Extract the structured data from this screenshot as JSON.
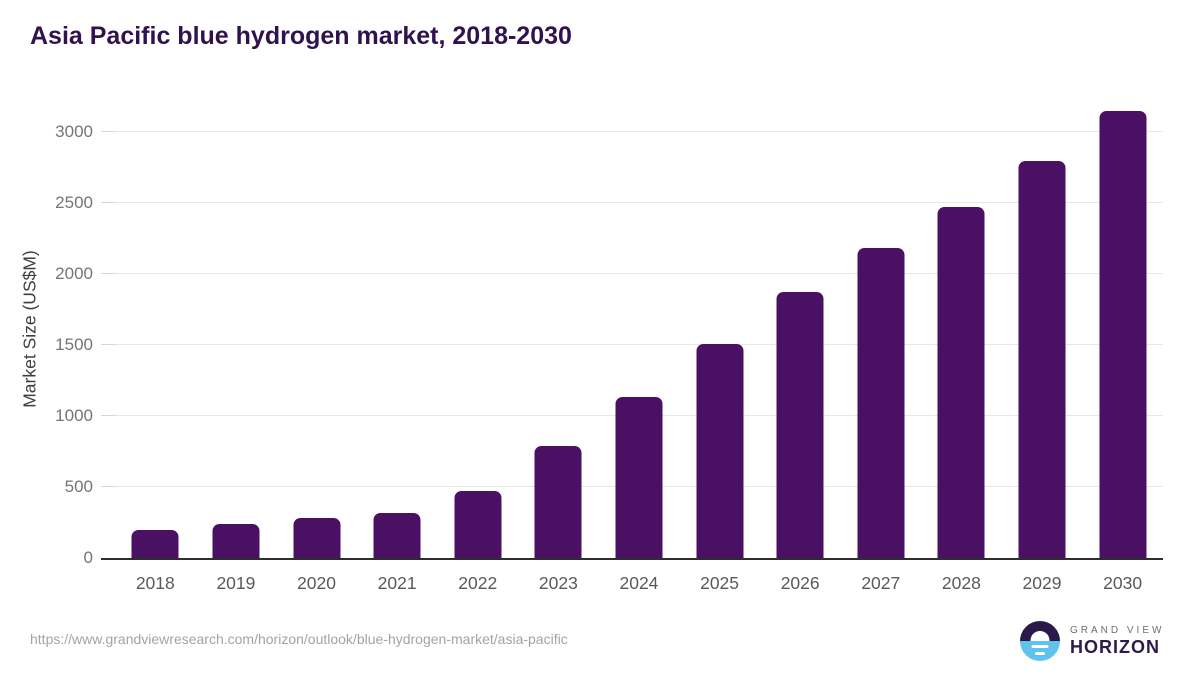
{
  "title": "Asia Pacific blue hydrogen market, 2018-2030",
  "source_url": "https://www.grandviewresearch.com/horizon/outlook/blue-hydrogen-market/asia-pacific",
  "logo": {
    "top": "GRAND VIEW",
    "bottom": "HORIZON",
    "icon": "horizon-sun-icon"
  },
  "colors": {
    "bar": "#4a1063",
    "title": "#30124f",
    "gridline": "#e7e7e7",
    "axis_line": "#2e2e2e",
    "tick_mark": "#d5d5d5",
    "y_tick_label": "#757575",
    "x_tick_label": "#595959",
    "axis_title": "#3f3f3f",
    "source_text": "#a3a3a3",
    "logo_dark": "#2b1a47",
    "logo_blue": "#5fc3ee",
    "logo_gray": "#6f6f6f"
  },
  "chart_data": {
    "type": "bar",
    "title": "Asia Pacific blue hydrogen market, 2018-2030",
    "categories": [
      "2018",
      "2019",
      "2020",
      "2021",
      "2022",
      "2023",
      "2024",
      "2025",
      "2026",
      "2027",
      "2028",
      "2029",
      "2030"
    ],
    "values": [
      200,
      242,
      280,
      318,
      472,
      790,
      1135,
      1505,
      1870,
      2185,
      2470,
      2795,
      3145
    ],
    "xlabel": "",
    "ylabel": "Market Size (US$M)",
    "ylim": [
      0,
      3000
    ],
    "yticks": [
      0,
      500,
      1000,
      1500,
      2000,
      2500,
      3000
    ],
    "grid": true,
    "legend": false,
    "bar_color": "#4a1063"
  }
}
